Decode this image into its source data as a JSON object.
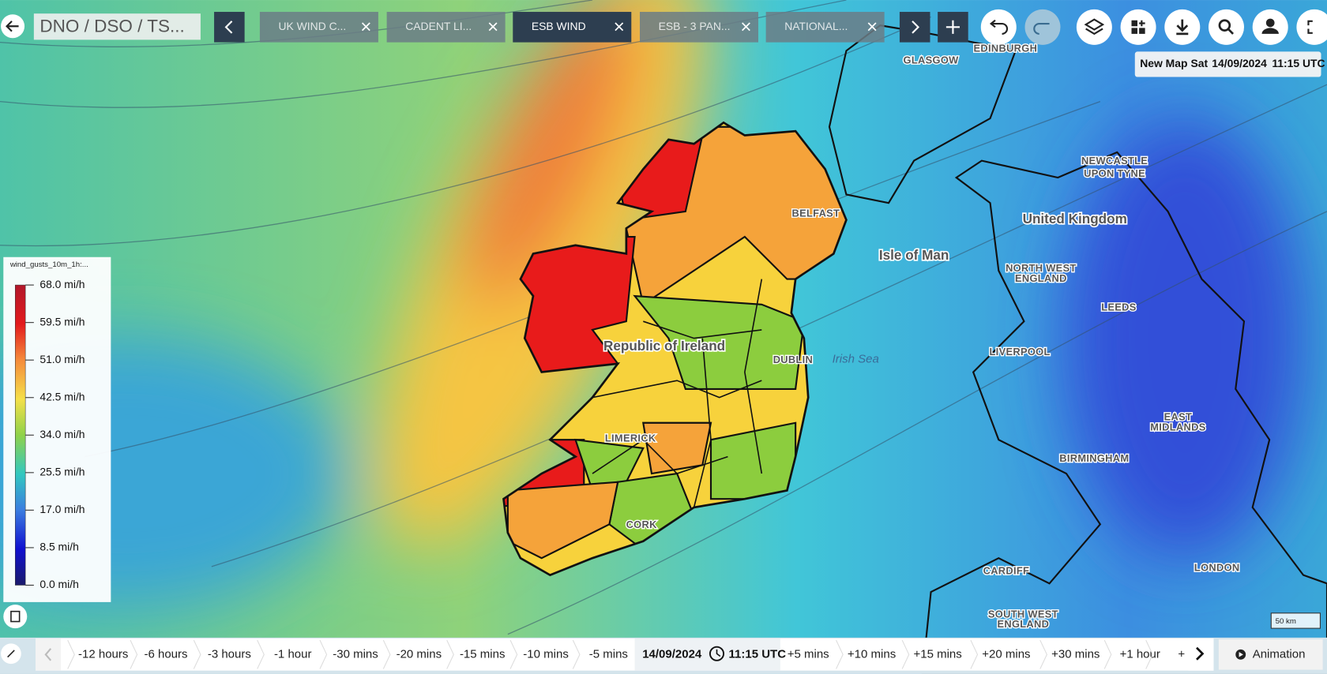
{
  "header": {
    "title": "DNO / DSO / TS..."
  },
  "tabs": [
    "UK WIND C...",
    "CADENT LI...",
    "ESB WIND",
    "ESB - 3 PAN...",
    "NATIONAL..."
  ],
  "map_info": {
    "map_name": "New Map",
    "day": "Sat",
    "date": "14/09/2024",
    "time": "11:15 UTC"
  },
  "legend": {
    "title": "wind_gusts_10m_1h:...",
    "labels": [
      "68.0 mi/h",
      "59.5 mi/h",
      "51.0 mi/h",
      "42.5 mi/h",
      "34.0 mi/h",
      "25.5 mi/h",
      "17.0 mi/h",
      "8.5 mi/h",
      "0.0 mi/h"
    ]
  },
  "map_labels": [
    "EDINBURGH",
    "GLASGOW",
    "NEWCASTLE",
    "UPON TYNE",
    "United Kingdom",
    "BELFAST",
    "Isle of Man",
    "NORTH WEST",
    "ENGLAND",
    "LEEDS",
    "Republic of Ireland",
    "DUBLIN",
    "Irish Sea",
    "LIVERPOOL",
    "LIMERICK",
    "EAST",
    "MIDLANDS",
    "BIRMINGHAM",
    "CORK",
    "CARDIFF",
    "LONDON",
    "SOUTH WEST",
    "ENGLAND"
  ],
  "scale_bar": "50 km",
  "timeline": {
    "steps_before": [
      "-12 hours",
      "-6 hours",
      "-3 hours",
      "-1 hour",
      "-30 mins",
      "-20 mins",
      "-15 mins",
      "-10 mins",
      "-5 mins"
    ],
    "current_date": "14/09/2024",
    "current_time": "11:15 UTC",
    "steps_after": [
      "+5 mins",
      "+10 mins",
      "+15 mins",
      "+20 mins",
      "+30 mins",
      "+1 hour",
      "+"
    ],
    "animation": "Animation"
  }
}
